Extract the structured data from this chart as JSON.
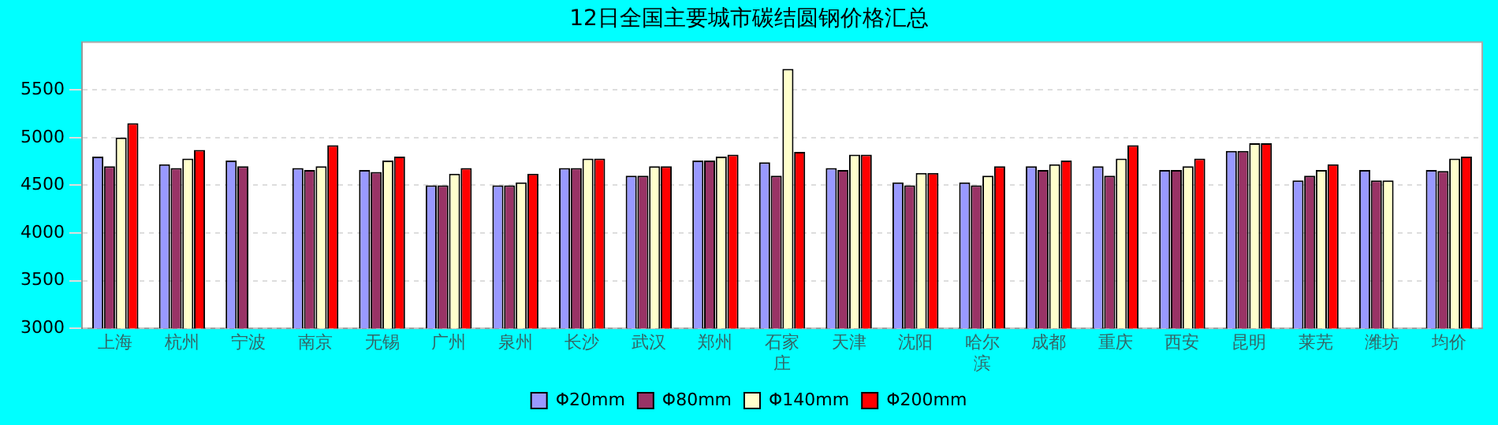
{
  "chart_data": {
    "type": "bar",
    "title": "12日全国主要城市碳结圆钢价格汇总",
    "categories": [
      "上海",
      "杭州",
      "宁波",
      "南京",
      "无锡",
      "广州",
      "泉州",
      "长沙",
      "武汉",
      "郑州",
      "石家庄",
      "天津",
      "沈阳",
      "哈尔滨",
      "成都",
      "重庆",
      "西安",
      "昆明",
      "莱芜",
      "潍坊",
      "均价"
    ],
    "series": [
      {
        "name": "Φ20mm",
        "color": "#9999ff",
        "values": [
          4800,
          4720,
          4760,
          4680,
          4660,
          4500,
          4500,
          4680,
          4600,
          4760,
          4740,
          4680,
          4530,
          4530,
          4700,
          4700,
          4660,
          4860,
          4550,
          4660,
          4660
        ]
      },
      {
        "name": "Φ80mm",
        "color": "#993366",
        "values": [
          4700,
          4680,
          4700,
          4660,
          4640,
          4500,
          4500,
          4680,
          4600,
          4760,
          4600,
          4660,
          4500,
          4500,
          4660,
          4600,
          4660,
          4860,
          4600,
          4550,
          4650
        ]
      },
      {
        "name": "Φ140mm",
        "color": "#ffffcc",
        "values": [
          5000,
          4780,
          null,
          4700,
          4760,
          4620,
          4530,
          4780,
          4700,
          4800,
          5720,
          4820,
          4630,
          4600,
          4720,
          4780,
          4700,
          4940,
          4660,
          4550,
          4780
        ]
      },
      {
        "name": "Φ200mm",
        "color": "#ff0000",
        "values": [
          5150,
          4870,
          null,
          4920,
          4800,
          4680,
          4620,
          4780,
          4700,
          4820,
          4850,
          4820,
          4630,
          4700,
          4760,
          4920,
          4780,
          4940,
          4720,
          null,
          4800
        ]
      }
    ],
    "ylim": [
      3000,
      6000
    ],
    "yticks": [
      3000,
      3500,
      4000,
      4500,
      5000,
      5500
    ],
    "grid": "y",
    "legend": "bottom"
  }
}
